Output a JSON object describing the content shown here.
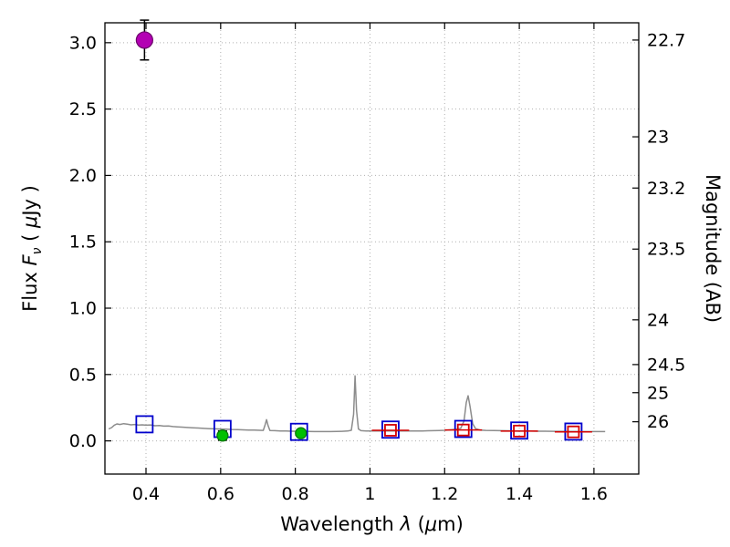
{
  "figure": {
    "background": "#ffffff",
    "ylabel_right": "Magnitude (AB)"
  },
  "chart_data": {
    "type": "line",
    "title": "",
    "grid": true,
    "grid_color": "#b0b0b0",
    "frame_color": "#000000",
    "x_range": [
      0.29,
      1.72
    ],
    "y_range": [
      -0.25,
      3.15
    ],
    "x_ticks": [
      0.4,
      0.6,
      0.8,
      1.0,
      1.2,
      1.4,
      1.6
    ],
    "x_tick_labels": [
      "0.4",
      "0.6",
      "0.8",
      "1",
      "1.2",
      "1.4",
      "1.6"
    ],
    "y_ticks_left": [
      0.0,
      0.5,
      1.0,
      1.5,
      2.0,
      2.5,
      3.0
    ],
    "y_tick_labels_left": [
      "0.0",
      "0.5",
      "1.0",
      "1.5",
      "2.0",
      "2.5",
      "3.0"
    ],
    "right_ticks": [
      {
        "label": "22.7",
        "flux": 3.02
      },
      {
        "label": "23",
        "flux": 2.291
      },
      {
        "label": "23.2",
        "flux": 1.905
      },
      {
        "label": "23.5",
        "flux": 1.445
      },
      {
        "label": "24",
        "flux": 0.912
      },
      {
        "label": "24.5",
        "flux": 0.575
      },
      {
        "label": "25",
        "flux": 0.363
      },
      {
        "label": "26",
        "flux": 0.144
      }
    ],
    "xlabel_parts": [
      {
        "t": "Wavelength  "
      },
      {
        "t": "λ",
        "i": 1
      },
      {
        "t": " ("
      },
      {
        "t": "μ",
        "i": 1
      },
      {
        "t": "m)"
      }
    ],
    "ylabel_left_parts": [
      {
        "t": "Flux  "
      },
      {
        "t": "F",
        "i": 1
      },
      {
        "t": "ν",
        "i": 1,
        "sub": 1
      },
      {
        "t": "  ( "
      },
      {
        "t": "μ",
        "i": 1
      },
      {
        "t": "Jy )"
      }
    ],
    "ylabel_right": "Magnitude (AB)",
    "series": [
      {
        "name": "model-spectrum",
        "kind": "line",
        "color": "#8c8c8c",
        "width": 1.5,
        "points": [
          [
            0.3,
            0.09
          ],
          [
            0.308,
            0.1
          ],
          [
            0.315,
            0.118
          ],
          [
            0.322,
            0.128
          ],
          [
            0.33,
            0.124
          ],
          [
            0.34,
            0.13
          ],
          [
            0.35,
            0.126
          ],
          [
            0.36,
            0.121
          ],
          [
            0.37,
            0.124
          ],
          [
            0.38,
            0.119
          ],
          [
            0.39,
            0.121
          ],
          [
            0.4,
            0.118
          ],
          [
            0.412,
            0.12
          ],
          [
            0.424,
            0.114
          ],
          [
            0.436,
            0.116
          ],
          [
            0.448,
            0.111
          ],
          [
            0.46,
            0.112
          ],
          [
            0.472,
            0.108
          ],
          [
            0.484,
            0.106
          ],
          [
            0.496,
            0.104
          ],
          [
            0.51,
            0.101
          ],
          [
            0.525,
            0.099
          ],
          [
            0.54,
            0.097
          ],
          [
            0.555,
            0.094
          ],
          [
            0.57,
            0.092
          ],
          [
            0.585,
            0.091
          ],
          [
            0.6,
            0.089
          ],
          [
            0.615,
            0.088
          ],
          [
            0.63,
            0.086
          ],
          [
            0.645,
            0.085
          ],
          [
            0.66,
            0.083
          ],
          [
            0.675,
            0.082
          ],
          [
            0.69,
            0.081
          ],
          [
            0.705,
            0.08
          ],
          [
            0.714,
            0.079
          ],
          [
            0.719,
            0.12
          ],
          [
            0.723,
            0.16
          ],
          [
            0.727,
            0.115
          ],
          [
            0.732,
            0.078
          ],
          [
            0.745,
            0.077
          ],
          [
            0.76,
            0.075
          ],
          [
            0.775,
            0.074
          ],
          [
            0.79,
            0.073
          ],
          [
            0.805,
            0.072
          ],
          [
            0.82,
            0.072
          ],
          [
            0.835,
            0.071
          ],
          [
            0.85,
            0.07
          ],
          [
            0.865,
            0.07
          ],
          [
            0.88,
            0.07
          ],
          [
            0.895,
            0.07
          ],
          [
            0.91,
            0.071
          ],
          [
            0.925,
            0.072
          ],
          [
            0.94,
            0.074
          ],
          [
            0.95,
            0.08
          ],
          [
            0.956,
            0.2
          ],
          [
            0.96,
            0.49
          ],
          [
            0.964,
            0.23
          ],
          [
            0.969,
            0.09
          ],
          [
            0.976,
            0.077
          ],
          [
            0.99,
            0.075
          ],
          [
            1.005,
            0.075
          ],
          [
            1.02,
            0.074
          ],
          [
            1.035,
            0.074
          ],
          [
            1.05,
            0.075
          ],
          [
            1.065,
            0.074
          ],
          [
            1.08,
            0.074
          ],
          [
            1.095,
            0.074
          ],
          [
            1.11,
            0.074
          ],
          [
            1.125,
            0.075
          ],
          [
            1.14,
            0.075
          ],
          [
            1.155,
            0.076
          ],
          [
            1.17,
            0.077
          ],
          [
            1.185,
            0.078
          ],
          [
            1.2,
            0.08
          ],
          [
            1.215,
            0.083
          ],
          [
            1.23,
            0.087
          ],
          [
            1.243,
            0.095
          ],
          [
            1.252,
            0.15
          ],
          [
            1.258,
            0.29
          ],
          [
            1.263,
            0.34
          ],
          [
            1.268,
            0.26
          ],
          [
            1.275,
            0.13
          ],
          [
            1.283,
            0.092
          ],
          [
            1.295,
            0.082
          ],
          [
            1.31,
            0.079
          ],
          [
            1.33,
            0.078
          ],
          [
            1.35,
            0.077
          ],
          [
            1.37,
            0.076
          ],
          [
            1.39,
            0.075
          ],
          [
            1.41,
            0.074
          ],
          [
            1.43,
            0.074
          ],
          [
            1.45,
            0.073
          ],
          [
            1.47,
            0.073
          ],
          [
            1.49,
            0.072
          ],
          [
            1.51,
            0.072
          ],
          [
            1.53,
            0.071
          ],
          [
            1.55,
            0.071
          ],
          [
            1.57,
            0.07
          ],
          [
            1.59,
            0.07
          ],
          [
            1.61,
            0.07
          ],
          [
            1.63,
            0.07
          ]
        ]
      },
      {
        "name": "model-photometry-squares",
        "kind": "square",
        "color": "#0000cc",
        "half": 9,
        "stroke_width": 1.8,
        "points": [
          [
            0.396,
            0.125
          ],
          [
            0.605,
            0.09
          ],
          [
            0.81,
            0.068
          ],
          [
            1.055,
            0.085
          ],
          [
            1.25,
            0.09
          ],
          [
            1.4,
            0.078
          ],
          [
            1.545,
            0.07
          ]
        ]
      },
      {
        "name": "observed-ir-squares",
        "kind": "square",
        "color": "#d40000",
        "half": 6,
        "stroke_width": 1.8,
        "err_color": "#d40000",
        "xerr": [
          0.05,
          0.05,
          0.05,
          0.05
        ],
        "points": [
          [
            1.055,
            0.08
          ],
          [
            1.25,
            0.082
          ],
          [
            1.4,
            0.074
          ],
          [
            1.545,
            0.068
          ]
        ]
      },
      {
        "name": "observed-optical-points",
        "kind": "circle",
        "color": "#00c000",
        "edge": "#007700",
        "r": 6,
        "err_color": "#000000",
        "yerr": [
          0.035,
          0.022
        ],
        "points": [
          [
            0.605,
            0.04
          ],
          [
            0.815,
            0.058
          ]
        ]
      },
      {
        "name": "uband-detection-point",
        "kind": "circle",
        "color": "#b300b3",
        "edge": "#6a006a",
        "r": 9,
        "err_color": "#000000",
        "yerr": [
          0.15
        ],
        "points": [
          [
            0.396,
            3.02
          ]
        ]
      }
    ]
  }
}
